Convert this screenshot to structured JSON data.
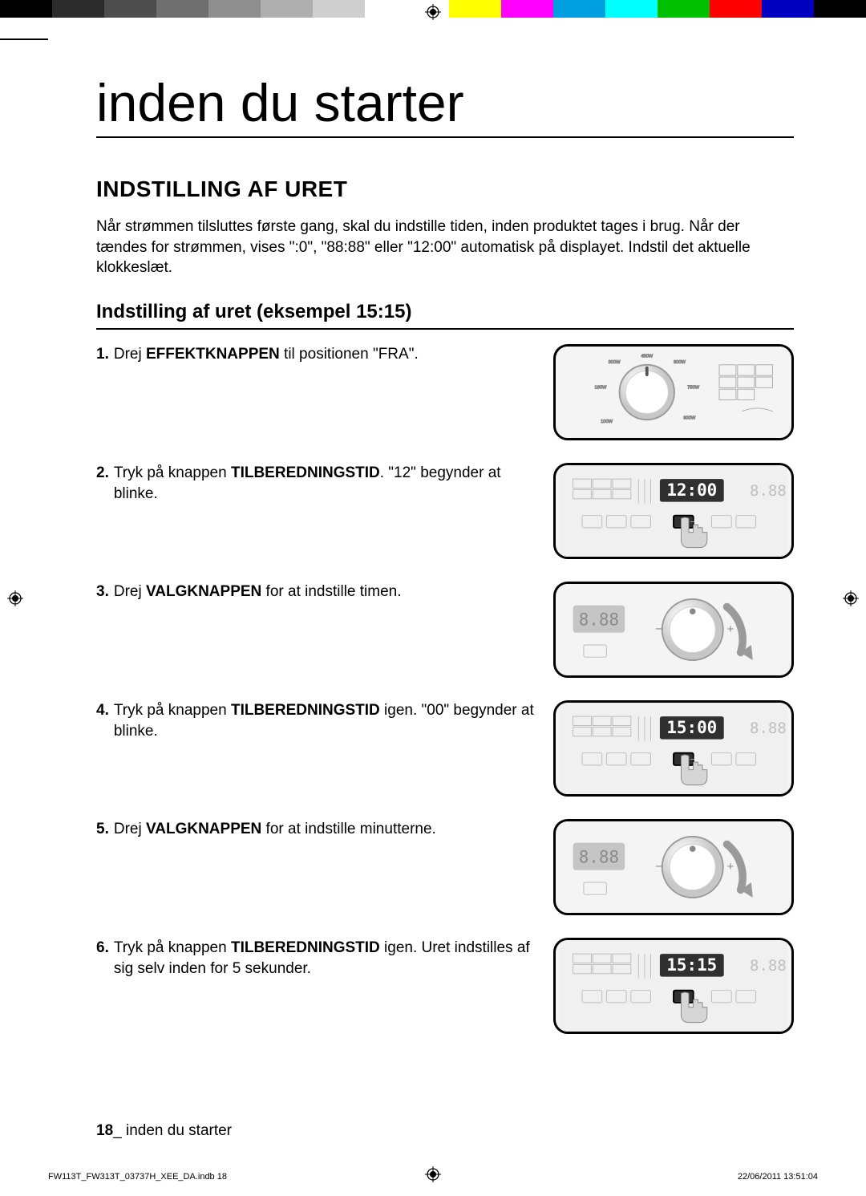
{
  "color_bar": {
    "left": [
      "#000000",
      "#2b2b2b",
      "#4d4d4d",
      "#6f6f6f",
      "#8f8f8f",
      "#afafaf",
      "#cfcfcf",
      "#ffffff"
    ],
    "right": [
      "#ffff00",
      "#ff00ff",
      "#00a0e0",
      "#00ffff",
      "#00c000",
      "#ff0000",
      "#0000c0",
      "#000000"
    ]
  },
  "title": "inden du starter",
  "section_heading": "INDSTILLING AF URET",
  "intro": "Når strømmen tilsluttes første gang, skal du indstille tiden, inden produktet tages i brug. Når der tændes for strømmen, vises \":0\", \"88:88\" eller \"12:00\" automatisk på displayet. Indstil det aktuelle klokkeslæt.",
  "sub_heading": "Indstilling af uret (eksempel 15:15)",
  "steps": [
    {
      "num": "1.",
      "a": "Drej ",
      "bold": "EFFEKTKNAPPEN",
      "b": " til positionen \"FRA\"."
    },
    {
      "num": "2.",
      "a": "Tryk på knappen ",
      "bold": "TILBEREDNINGSTID",
      "b": ". \"12\" begynder at blinke."
    },
    {
      "num": "3.",
      "a": "Drej ",
      "bold": "VALGKNAPPEN",
      "b": " for at indstille timen."
    },
    {
      "num": "4.",
      "a": "Tryk på knappen ",
      "bold": "TILBEREDNINGSTID",
      "b": " igen. \"00\" begynder at blinke."
    },
    {
      "num": "5.",
      "a": "Drej ",
      "bold": "VALGKNAPPEN",
      "b": " for at indstille minutterne."
    },
    {
      "num": "6.",
      "a": "Tryk på knappen ",
      "bold": "TILBEREDNINGSTID",
      "b": " igen. Uret indstilles af sig selv inden for 5 sekunder."
    }
  ],
  "display_values": {
    "step2": "12:00",
    "step4": "15:00",
    "step6": "15:15"
  },
  "footer_page_num": "18",
  "footer_text": "_ inden du starter",
  "meta_file": "FW113T_FW313T_03737H_XEE_DA.indb   18",
  "meta_date": "22/06/2011   13:51:04",
  "illus_colors": {
    "panel_bg": "#d9d9d9",
    "dial_fill": "#f5f5f5",
    "dial_stroke": "#9a9a9a",
    "lcd_bg": "#303030",
    "lcd_text": "#ffffff",
    "button_stroke": "#9a9a9a",
    "hand_fill": "#c7c7c7",
    "arrow": "#9a9a9a",
    "placeholder_lcd": "#b0b0b0",
    "placeholder_text": "#8a8a8a"
  }
}
